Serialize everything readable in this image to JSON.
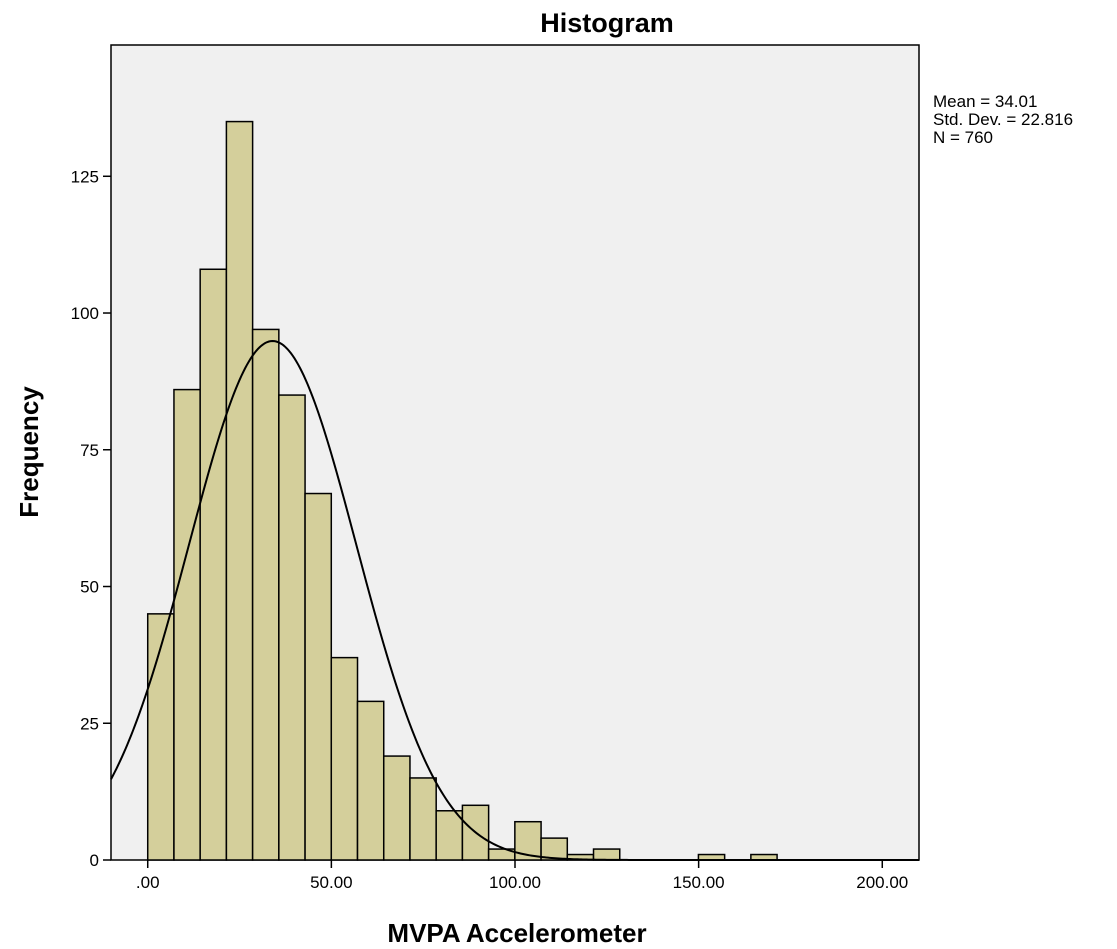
{
  "chart_data": {
    "type": "bar",
    "title": "Histogram",
    "xlabel": "MVPA Accelerometer",
    "ylabel": "Frequency",
    "xlim": [
      -10,
      210
    ],
    "ylim": [
      0,
      149
    ],
    "x_ticks": [
      0,
      50,
      100,
      150,
      200
    ],
    "x_tick_labels": [
      ".00",
      "50.00",
      "100.00",
      "150.00",
      "200.00"
    ],
    "y_ticks": [
      0,
      25,
      50,
      75,
      100,
      125
    ],
    "y_tick_labels": [
      "0",
      "25",
      "50",
      "75",
      "100",
      "125"
    ],
    "bin_width": 7.14,
    "bin_start": 0,
    "values": [
      45,
      86,
      108,
      135,
      97,
      85,
      67,
      37,
      29,
      19,
      15,
      9,
      10,
      2,
      7,
      4,
      1,
      2,
      0,
      0,
      0,
      1,
      0,
      1,
      0,
      0,
      0,
      0
    ],
    "normal_curve": {
      "mean": 34.01,
      "sd": 22.816,
      "n": 760
    },
    "stats": [
      "Mean = 34.01",
      "Std. Dev. = 22.816",
      "N = 760"
    ],
    "grid": false,
    "legend_position": "top-right",
    "colors": {
      "bar_fill": "#d4cf9b",
      "bar_stroke": "#000000",
      "plot_bg": "#f0f0f0",
      "curve": "#000000"
    }
  }
}
